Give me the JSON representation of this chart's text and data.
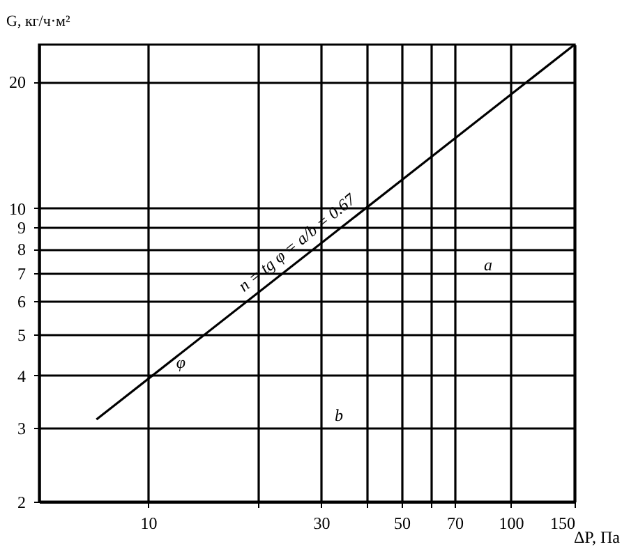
{
  "chart_data": {
    "type": "line",
    "xlabel": "ΔP, Па",
    "ylabel": "G, кг/ч·м²",
    "log": "xy",
    "grid": true,
    "marker": "none",
    "line_style": "solid",
    "xlim": [
      5,
      150
    ],
    "ylim": [
      2,
      24.5
    ],
    "xticks": [
      10,
      {
        "value": 20,
        "label": null
      },
      30,
      {
        "value": 40,
        "label": null
      },
      50,
      {
        "value": 60,
        "label": null
      },
      70,
      100,
      150
    ],
    "yticks": [
      2,
      3,
      4,
      5,
      6,
      7,
      8,
      9,
      10,
      20
    ],
    "series": [
      {
        "color": "#000000",
        "x": [
          7.2,
          150
        ],
        "values": [
          3.14,
          24.5
        ]
      }
    ],
    "annotations": [
      {
        "text": "n = tg φ = a/b = 0.67",
        "x": 27,
        "y": 7.85
      },
      {
        "text": "φ",
        "x": 12.3,
        "y": 4.3
      },
      "a",
      "b"
    ]
  }
}
